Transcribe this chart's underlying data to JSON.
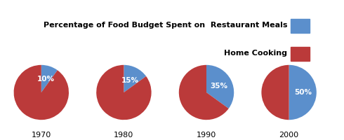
{
  "legend_label_restaurant": "Percentage of Food Budget Spent on  Restaurant Meals",
  "legend_label_home": "Home Cooking",
  "years": [
    "1970",
    "1980",
    "1990",
    "2000"
  ],
  "restaurant_pct": [
    10,
    15,
    35,
    50
  ],
  "blue_color": "#5B8FCC",
  "red_color": "#BB3A3A",
  "year_fontsize": 8,
  "legend_fontsize": 8,
  "pct_fontsize": 7.5,
  "background_color": "#FFFFFF"
}
